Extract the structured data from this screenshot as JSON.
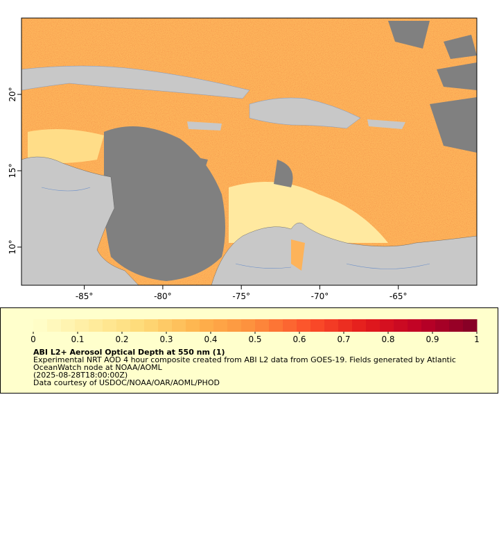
{
  "map": {
    "xlim": [
      -89,
      -60
    ],
    "ylim": [
      7.5,
      25
    ],
    "xticks": [
      {
        "value": -85,
        "label": "-85°"
      },
      {
        "value": -80,
        "label": "-80°"
      },
      {
        "value": -75,
        "label": "-75°"
      },
      {
        "value": -70,
        "label": "-70°"
      },
      {
        "value": -65,
        "label": "-65°"
      }
    ],
    "yticks": [
      {
        "value": 10,
        "label": "10°"
      },
      {
        "value": 15,
        "label": "15°"
      },
      {
        "value": 20,
        "label": "20°"
      }
    ]
  },
  "legend": {
    "colorbar": {
      "lim": [
        0,
        1
      ],
      "ticks": [
        0,
        0.1,
        0.2,
        0.3,
        0.4,
        0.5,
        0.6,
        0.7,
        0.8,
        0.9,
        1
      ],
      "colors": [
        "#ffffcc",
        "#ffeda0",
        "#fed976",
        "#feb24c",
        "#fd8d3c",
        "#fc4e2a",
        "#e31a1c",
        "#bd0026",
        "#800026"
      ]
    },
    "title": "ABI L2+ Aerosol Optical Depth at 550 nm (1)",
    "lines": [
      "Experimental NRT AOD 4 hour composite created from ABI L2 data from GOES-19. Fields generated by Atlantic",
      "OceanWatch node at NOAA/AOML",
      "(2025-08-28T18:00:00Z)",
      "Data courtesy of USDOC/NOAA/OAR/AOML/PHOD"
    ]
  }
}
